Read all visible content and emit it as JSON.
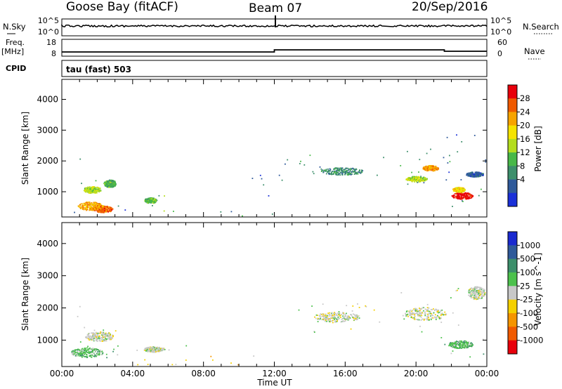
{
  "header": {
    "station": "Goose Bay (fitACF)",
    "beam": "Beam 07",
    "date": "20/Sep/2016"
  },
  "top_panels": {
    "nsky_label": "N.Sky",
    "nsky_ticks": [
      "10^5",
      "10^0"
    ],
    "nsearch_label": "N.Search",
    "nsearch_ticks": [
      "10^5",
      "10^0"
    ],
    "freq_label": "Freq.",
    "freq_unit": "[MHz]",
    "freq_ticks": [
      "18",
      "8"
    ],
    "nave_label": "Nave",
    "nave_ticks": [
      "60",
      "0"
    ],
    "cpid_label": "CPID",
    "cpid_value": "tau (fast) 503"
  },
  "x_axis": {
    "label": "Time UT",
    "ticks": [
      "00:00",
      "04:00",
      "08:00",
      "12:00",
      "16:00",
      "20:00",
      "00:00"
    ]
  },
  "power_colorbar": {
    "label": "Power [dB]",
    "ticks": [
      "28",
      "24",
      "20",
      "16",
      "12",
      "8",
      "4"
    ],
    "colors": [
      "#e8000b",
      "#f05a00",
      "#f7a400",
      "#f5e300",
      "#b4dd1e",
      "#48b848",
      "#3d8f6b",
      "#2f5a9a",
      "#1a30d8"
    ]
  },
  "velocity_colorbar": {
    "label": "Velocity [m s^-1]",
    "ticks": [
      "1000",
      "500",
      "100",
      "25",
      "-25",
      "-100",
      "-500",
      "-1000"
    ],
    "colors": [
      "#1a2ad0",
      "#2f5a9a",
      "#3d8f6b",
      "#4cc14c",
      "#c8c8c8",
      "#f5d000",
      "#f59500",
      "#f05a00",
      "#e8000b"
    ]
  },
  "chart_data": [
    {
      "type": "heatmap",
      "title": "",
      "panel": "power",
      "xlabel": "",
      "ylabel": "Slant Range [km]",
      "xlim": [
        0,
        24
      ],
      "ylim": [
        180,
        4650
      ],
      "yticks": [
        1000,
        2000,
        3000,
        4000
      ],
      "colorbar": "Power [dB]",
      "scatter_regions": [
        {
          "t": [
            0.3,
            1.2
          ],
          "r": [
            1800,
            2150
          ],
          "level": 6
        },
        {
          "t": [
            0.4,
            2.8
          ],
          "r": [
            300,
            700
          ],
          "level": 8
        },
        {
          "t": [
            1.0,
            3.2
          ],
          "r": [
            900,
            1400
          ],
          "level": 6
        },
        {
          "t": [
            2.9,
            4.8
          ],
          "r": [
            250,
            550
          ],
          "level": 7
        },
        {
          "t": [
            4.0,
            6.6
          ],
          "r": [
            250,
            900
          ],
          "level": 5
        },
        {
          "t": [
            6.6,
            12.0
          ],
          "r": [
            190,
            420
          ],
          "level": 6
        },
        {
          "t": [
            10.5,
            12.5
          ],
          "r": [
            800,
            1800
          ],
          "level": 7
        },
        {
          "t": [
            12.5,
            18.2
          ],
          "r": [
            1500,
            2200
          ],
          "level": 6
        },
        {
          "t": [
            18.6,
            22.0
          ],
          "r": [
            1200,
            2400
          ],
          "level": 6
        },
        {
          "t": [
            21.5,
            24.0
          ],
          "r": [
            1300,
            2900
          ],
          "level": 7
        },
        {
          "t": [
            21.5,
            24.0
          ],
          "r": [
            450,
            1100
          ],
          "level": 6
        }
      ],
      "blobs": [
        {
          "t": 2.3,
          "r": 420,
          "st": 0.55,
          "sr": 110,
          "level": 1
        },
        {
          "t": 1.6,
          "r": 520,
          "st": 0.7,
          "sr": 140,
          "level": 2
        },
        {
          "t": 1.7,
          "r": 1050,
          "st": 0.5,
          "sr": 110,
          "level": 4
        },
        {
          "t": 2.7,
          "r": 1250,
          "st": 0.35,
          "sr": 120,
          "level": 5
        },
        {
          "t": 5.0,
          "r": 700,
          "st": 0.35,
          "sr": 90,
          "level": 5
        },
        {
          "t": 15.8,
          "r": 1650,
          "st": 1.2,
          "sr": 120,
          "level": 6
        },
        {
          "t": 20.8,
          "r": 1750,
          "st": 0.45,
          "sr": 90,
          "level": 2
        },
        {
          "t": 20.0,
          "r": 1400,
          "st": 0.6,
          "sr": 90,
          "level": 4
        },
        {
          "t": 22.6,
          "r": 850,
          "st": 0.6,
          "sr": 110,
          "level": 0
        },
        {
          "t": 22.4,
          "r": 1050,
          "st": 0.35,
          "sr": 80,
          "level": 3
        },
        {
          "t": 23.3,
          "r": 1550,
          "st": 0.5,
          "sr": 80,
          "level": 7
        }
      ]
    },
    {
      "type": "heatmap",
      "title": "",
      "panel": "velocity",
      "xlabel": "Time UT",
      "ylabel": "Slant Range [km]",
      "xlim": [
        0,
        24
      ],
      "ylim": [
        180,
        4650
      ],
      "yticks": [
        1000,
        2000,
        3000,
        4000
      ],
      "colorbar": "Velocity [m s^-1]",
      "scatter_regions": [
        {
          "t": [
            0.3,
            1.5
          ],
          "r": [
            1700,
            2200
          ],
          "level": 4
        },
        {
          "t": [
            0.3,
            3.2
          ],
          "r": [
            350,
            800
          ],
          "level": 3
        },
        {
          "t": [
            0.8,
            3.2
          ],
          "r": [
            850,
            1400
          ],
          "level": 4
        },
        {
          "t": [
            3.0,
            7.0
          ],
          "r": [
            200,
            900
          ],
          "level": 4
        },
        {
          "t": [
            6.0,
            12.0
          ],
          "r": [
            190,
            500
          ],
          "level": 5
        },
        {
          "t": [
            12.5,
            18.2
          ],
          "r": [
            1200,
            2200
          ],
          "level": 4
        },
        {
          "t": [
            18.6,
            22.5
          ],
          "r": [
            1200,
            2600
          ],
          "level": 4
        },
        {
          "t": [
            21.0,
            24.0
          ],
          "r": [
            450,
            1100
          ],
          "level": 3
        }
      ],
      "blobs": [
        {
          "t": 1.4,
          "r": 600,
          "st": 0.9,
          "sr": 150,
          "level": 3
        },
        {
          "t": 2.1,
          "r": 1100,
          "st": 0.8,
          "sr": 150,
          "level": 4
        },
        {
          "t": 5.2,
          "r": 700,
          "st": 0.6,
          "sr": 80,
          "level": 4
        },
        {
          "t": 15.5,
          "r": 1700,
          "st": 1.3,
          "sr": 150,
          "level": 4
        },
        {
          "t": 20.5,
          "r": 1800,
          "st": 1.2,
          "sr": 200,
          "level": 4
        },
        {
          "t": 22.5,
          "r": 850,
          "st": 0.7,
          "sr": 120,
          "level": 3
        },
        {
          "t": 23.4,
          "r": 2450,
          "st": 0.5,
          "sr": 200,
          "level": 4
        }
      ]
    }
  ]
}
